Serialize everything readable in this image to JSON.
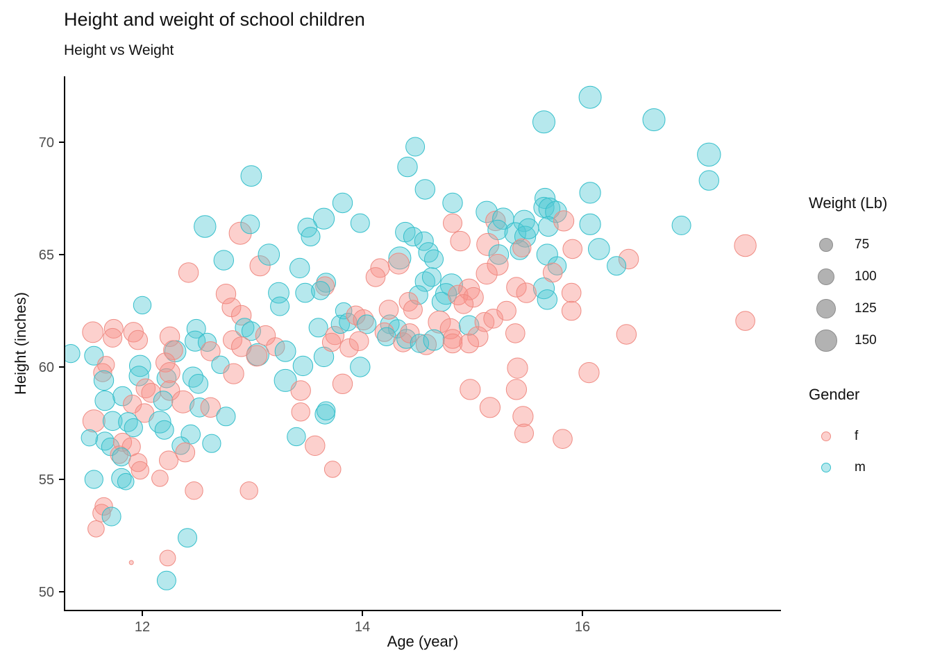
{
  "title": "Height and weight of school children",
  "subtitle": "Height vs Weight",
  "chart_data": {
    "type": "scatter",
    "title": "Height and weight of school children",
    "subtitle": "Height vs Weight",
    "xlabel": "Age (year)",
    "ylabel": "Height (inches)",
    "x_ticks": [
      12,
      14,
      16
    ],
    "y_ticks": [
      50,
      55,
      60,
      65,
      70
    ],
    "xlim": [
      11.3,
      17.8
    ],
    "ylim": [
      49.2,
      72.8
    ],
    "grid": false,
    "legend_position": "right",
    "size_legend": {
      "title": "Weight (Lb)",
      "values": [
        75,
        100,
        125,
        150
      ]
    },
    "color_legend": {
      "title": "Gender",
      "entries": [
        {
          "label": "f"
        },
        {
          "label": "m"
        }
      ]
    },
    "colors": {
      "f": {
        "stroke": "#EF8B83",
        "fill": "rgba(247,143,135,0.42)"
      },
      "m": {
        "stroke": "#35BFCB",
        "fill": "rgba(82,201,211,0.42)"
      },
      "axis": "#000000",
      "tick_label": "#4d4d4d",
      "legend_key_fill": "#B2B2B2",
      "legend_key_stroke": "#8C8C8C"
    },
    "points_format": [
      "age_years",
      "height_inches",
      "gender",
      "weight_lb"
    ],
    "points": [
      [
        11.35,
        60.6,
        "m",
        110
      ],
      [
        11.56,
        60.5,
        "m",
        115
      ],
      [
        11.67,
        60.1,
        "f",
        100
      ],
      [
        11.64,
        59.75,
        "f",
        110
      ],
      [
        11.65,
        59.4,
        "m",
        125
      ],
      [
        11.98,
        60.05,
        "m",
        140
      ],
      [
        11.97,
        59.6,
        "m",
        125
      ],
      [
        11.55,
        61.55,
        "f",
        135
      ],
      [
        11.74,
        61.7,
        "f",
        115
      ],
      [
        11.73,
        61.3,
        "f",
        115
      ],
      [
        11.92,
        61.55,
        "f",
        125
      ],
      [
        11.96,
        61.2,
        "f",
        120
      ],
      [
        12.25,
        61.35,
        "f",
        125
      ],
      [
        12.49,
        61.7,
        "m",
        115
      ],
      [
        12.48,
        61.15,
        "m",
        130
      ],
      [
        12.59,
        61.1,
        "m",
        110
      ],
      [
        12.3,
        60.7,
        "m",
        140
      ],
      [
        12.28,
        60.75,
        "f",
        120
      ],
      [
        12.62,
        60.7,
        "f",
        120
      ],
      [
        12.71,
        60.1,
        "m",
        105
      ],
      [
        12.83,
        59.7,
        "f",
        130
      ],
      [
        12.0,
        62.75,
        "m",
        105
      ],
      [
        12.46,
        59.55,
        "m",
        130
      ],
      [
        12.51,
        59.25,
        "m",
        120
      ],
      [
        12.22,
        59.5,
        "m",
        120
      ],
      [
        12.21,
        60.2,
        "f",
        120
      ],
      [
        12.25,
        59.75,
        "f",
        130
      ],
      [
        12.03,
        59.05,
        "f",
        120
      ],
      [
        12.08,
        58.85,
        "f",
        120
      ],
      [
        12.25,
        58.95,
        "f",
        125
      ],
      [
        12.19,
        58.5,
        "m",
        120
      ],
      [
        11.82,
        58.7,
        "m",
        120
      ],
      [
        11.66,
        58.5,
        "m",
        125
      ],
      [
        11.91,
        58.35,
        "f",
        110
      ],
      [
        12.02,
        57.95,
        "f",
        115
      ],
      [
        12.37,
        58.45,
        "f",
        150
      ],
      [
        12.52,
        58.2,
        "m",
        120
      ],
      [
        12.62,
        58.2,
        "f",
        125
      ],
      [
        12.76,
        57.8,
        "m",
        115
      ],
      [
        11.56,
        57.6,
        "f",
        150
      ],
      [
        11.73,
        57.6,
        "m",
        120
      ],
      [
        11.87,
        57.55,
        "m",
        120
      ],
      [
        11.92,
        57.3,
        "m",
        110
      ],
      [
        12.16,
        57.55,
        "m",
        145
      ],
      [
        12.2,
        57.2,
        "m",
        115
      ],
      [
        12.44,
        57.0,
        "m",
        120
      ],
      [
        11.52,
        56.85,
        "m",
        95
      ],
      [
        11.66,
        56.7,
        "m",
        110
      ],
      [
        11.71,
        56.45,
        "m",
        105
      ],
      [
        11.82,
        56.65,
        "f",
        110
      ],
      [
        11.9,
        56.45,
        "f",
        110
      ],
      [
        11.79,
        56.1,
        "f",
        105
      ],
      [
        11.81,
        56.0,
        "m",
        110
      ],
      [
        11.96,
        55.75,
        "f",
        110
      ],
      [
        11.98,
        55.4,
        "f",
        105
      ],
      [
        12.24,
        55.85,
        "f",
        115
      ],
      [
        12.35,
        56.5,
        "m",
        105
      ],
      [
        12.39,
        56.2,
        "f",
        120
      ],
      [
        12.63,
        56.6,
        "m",
        110
      ],
      [
        12.16,
        55.05,
        "f",
        95
      ],
      [
        11.56,
        55.0,
        "m",
        110
      ],
      [
        11.81,
        55.05,
        "m",
        125
      ],
      [
        11.85,
        54.9,
        "m",
        95
      ],
      [
        11.65,
        53.8,
        "f",
        105
      ],
      [
        11.63,
        53.5,
        "f",
        105
      ],
      [
        11.72,
        53.35,
        "m",
        115
      ],
      [
        11.58,
        52.8,
        "f",
        95
      ],
      [
        12.41,
        52.4,
        "m",
        115
      ],
      [
        12.23,
        51.5,
        "f",
        90
      ],
      [
        11.9,
        51.3,
        "f",
        20
      ],
      [
        12.22,
        50.5,
        "m",
        115
      ],
      [
        12.47,
        54.5,
        "f",
        105
      ],
      [
        12.97,
        54.5,
        "f",
        105
      ],
      [
        12.99,
        68.5,
        "m",
        135
      ],
      [
        12.57,
        66.25,
        "m",
        145
      ],
      [
        12.89,
        65.95,
        "f",
        150
      ],
      [
        12.98,
        66.35,
        "m",
        115
      ],
      [
        12.74,
        64.75,
        "m",
        125
      ],
      [
        12.42,
        64.2,
        "f",
        125
      ],
      [
        13.07,
        64.5,
        "f",
        130
      ],
      [
        13.15,
        65.0,
        "m",
        140
      ],
      [
        13.43,
        64.4,
        "m",
        125
      ],
      [
        13.24,
        63.3,
        "m",
        135
      ],
      [
        13.25,
        62.7,
        "m",
        115
      ],
      [
        12.76,
        63.25,
        "f",
        125
      ],
      [
        12.81,
        62.65,
        "f",
        115
      ],
      [
        12.9,
        62.3,
        "f",
        125
      ],
      [
        12.93,
        61.75,
        "m",
        115
      ],
      [
        12.99,
        61.6,
        "m",
        115
      ],
      [
        12.82,
        61.2,
        "f",
        115
      ],
      [
        12.9,
        60.9,
        "f",
        125
      ],
      [
        13.05,
        60.55,
        "m",
        150
      ],
      [
        13.04,
        60.5,
        "f",
        135
      ],
      [
        13.12,
        61.4,
        "f",
        125
      ],
      [
        13.21,
        60.9,
        "f",
        110
      ],
      [
        13.3,
        60.7,
        "m",
        135
      ],
      [
        13.46,
        60.05,
        "m",
        125
      ],
      [
        13.3,
        59.4,
        "m",
        150
      ],
      [
        13.44,
        58.95,
        "f",
        125
      ],
      [
        13.44,
        58.0,
        "f",
        112
      ],
      [
        13.4,
        56.9,
        "m",
        112
      ],
      [
        13.48,
        63.3,
        "m",
        120
      ],
      [
        13.6,
        61.75,
        "m",
        115
      ],
      [
        13.75,
        61.4,
        "f",
        112
      ],
      [
        13.8,
        61.9,
        "m",
        112
      ],
      [
        13.65,
        60.45,
        "m",
        125
      ],
      [
        13.98,
        60.0,
        "m",
        125
      ],
      [
        13.82,
        59.25,
        "f",
        125
      ],
      [
        13.66,
        57.9,
        "m",
        125
      ],
      [
        13.67,
        58.05,
        "m",
        112
      ],
      [
        13.57,
        56.5,
        "f",
        125
      ],
      [
        13.73,
        55.45,
        "f",
        95
      ],
      [
        13.82,
        67.3,
        "m",
        125
      ],
      [
        13.65,
        66.6,
        "m",
        137
      ],
      [
        13.98,
        66.4,
        "m",
        115
      ],
      [
        13.5,
        66.2,
        "m",
        120
      ],
      [
        13.53,
        65.8,
        "m",
        115
      ],
      [
        14.48,
        69.8,
        "m",
        115
      ],
      [
        14.41,
        68.9,
        "m",
        125
      ],
      [
        14.57,
        67.9,
        "m",
        125
      ],
      [
        14.82,
        67.3,
        "m",
        125
      ],
      [
        14.82,
        66.4,
        "f",
        115
      ],
      [
        14.39,
        66.0,
        "m",
        125
      ],
      [
        14.46,
        65.8,
        "m",
        115
      ],
      [
        14.56,
        65.6,
        "m",
        115
      ],
      [
        14.6,
        65.1,
        "m",
        125
      ],
      [
        14.65,
        64.8,
        "m",
        115
      ],
      [
        14.34,
        64.85,
        "m",
        150
      ],
      [
        14.33,
        64.6,
        "f",
        137
      ],
      [
        14.16,
        64.4,
        "f",
        115
      ],
      [
        14.12,
        64.0,
        "f",
        120
      ],
      [
        13.67,
        63.75,
        "m",
        120
      ],
      [
        13.66,
        63.6,
        "f",
        115
      ],
      [
        13.62,
        63.4,
        "m",
        112
      ],
      [
        14.57,
        63.8,
        "m",
        125
      ],
      [
        14.63,
        64.0,
        "m",
        115
      ],
      [
        14.81,
        63.65,
        "m",
        150
      ],
      [
        14.76,
        63.25,
        "m",
        137
      ],
      [
        14.72,
        62.9,
        "m",
        120
      ],
      [
        14.51,
        63.2,
        "m",
        115
      ],
      [
        14.87,
        63.2,
        "f",
        125
      ],
      [
        14.97,
        63.45,
        "f",
        137
      ],
      [
        15.01,
        63.1,
        "f",
        125
      ],
      [
        14.92,
        62.8,
        "f",
        120
      ],
      [
        14.25,
        61.9,
        "m",
        115
      ],
      [
        14.32,
        61.7,
        "m",
        112
      ],
      [
        14.24,
        62.55,
        "f",
        120
      ],
      [
        14.42,
        62.9,
        "f",
        115
      ],
      [
        14.46,
        62.55,
        "f",
        115
      ],
      [
        13.83,
        62.5,
        "m",
        95
      ],
      [
        13.87,
        62.0,
        "m",
        105
      ],
      [
        13.94,
        62.3,
        "f",
        115
      ],
      [
        14.01,
        62.1,
        "f",
        130
      ],
      [
        14.04,
        61.9,
        "m",
        115
      ],
      [
        14.2,
        61.55,
        "f",
        115
      ],
      [
        14.22,
        61.35,
        "m",
        112
      ],
      [
        14.7,
        62.0,
        "f",
        150
      ],
      [
        14.8,
        61.7,
        "f",
        130
      ],
      [
        14.82,
        61.25,
        "f",
        120
      ],
      [
        14.97,
        61.85,
        "m",
        125
      ],
      [
        15.05,
        61.35,
        "f",
        130
      ],
      [
        15.11,
        62.0,
        "f",
        120
      ],
      [
        15.19,
        62.15,
        "f",
        120
      ],
      [
        15.31,
        62.5,
        "f",
        120
      ],
      [
        13.72,
        61.1,
        "f",
        112
      ],
      [
        13.88,
        60.85,
        "f",
        112
      ],
      [
        13.97,
        61.15,
        "f",
        120
      ],
      [
        14.37,
        61.1,
        "f",
        120
      ],
      [
        14.4,
        61.25,
        "m",
        120
      ],
      [
        14.43,
        61.5,
        "f",
        120
      ],
      [
        14.58,
        61.0,
        "f",
        130
      ],
      [
        14.52,
        61.05,
        "m",
        112
      ],
      [
        14.65,
        61.2,
        "m",
        135
      ],
      [
        14.82,
        61.05,
        "f",
        120
      ],
      [
        14.97,
        61.05,
        "f",
        120
      ],
      [
        15.39,
        61.5,
        "f",
        120
      ],
      [
        14.98,
        59.0,
        "f",
        130
      ],
      [
        15.16,
        58.2,
        "f",
        130
      ],
      [
        15.41,
        59.95,
        "f",
        130
      ],
      [
        15.4,
        59.0,
        "f",
        130
      ],
      [
        15.46,
        57.8,
        "f",
        130
      ],
      [
        15.47,
        57.05,
        "f",
        115
      ],
      [
        15.82,
        56.8,
        "f",
        120
      ],
      [
        16.06,
        59.75,
        "f",
        130
      ],
      [
        15.13,
        66.9,
        "m",
        140
      ],
      [
        15.21,
        66.5,
        "f",
        125
      ],
      [
        15.28,
        66.6,
        "m",
        140
      ],
      [
        15.47,
        66.5,
        "m",
        140
      ],
      [
        15.23,
        66.1,
        "m",
        125
      ],
      [
        15.39,
        65.95,
        "m",
        140
      ],
      [
        15.48,
        65.8,
        "m",
        137
      ],
      [
        15.51,
        66.15,
        "m",
        130
      ],
      [
        14.89,
        65.6,
        "f",
        125
      ],
      [
        15.14,
        65.45,
        "f",
        150
      ],
      [
        15.43,
        65.2,
        "m",
        120
      ],
      [
        15.45,
        65.3,
        "f",
        110
      ],
      [
        15.24,
        65.0,
        "m",
        125
      ],
      [
        15.23,
        64.55,
        "f",
        137
      ],
      [
        15.13,
        64.15,
        "f",
        137
      ],
      [
        15.68,
        65.0,
        "m",
        137
      ],
      [
        15.77,
        64.5,
        "m",
        112
      ],
      [
        15.65,
        63.5,
        "m",
        137
      ],
      [
        15.68,
        63.0,
        "m",
        125
      ],
      [
        15.4,
        63.55,
        "f",
        125
      ],
      [
        15.49,
        63.3,
        "f",
        125
      ],
      [
        15.9,
        63.3,
        "f",
        120
      ],
      [
        15.9,
        62.5,
        "f",
        120
      ],
      [
        15.65,
        70.9,
        "m",
        150
      ],
      [
        15.66,
        67.5,
        "m",
        130
      ],
      [
        15.65,
        67.1,
        "m",
        130
      ],
      [
        15.7,
        67.05,
        "m",
        140
      ],
      [
        15.76,
        66.9,
        "m",
        140
      ],
      [
        15.69,
        66.25,
        "m",
        125
      ],
      [
        15.83,
        66.5,
        "f",
        130
      ],
      [
        15.73,
        64.2,
        "f",
        120
      ],
      [
        16.07,
        72.0,
        "m",
        150
      ],
      [
        16.65,
        71.0,
        "m",
        150
      ],
      [
        16.07,
        67.75,
        "m",
        137
      ],
      [
        16.07,
        66.35,
        "m",
        137
      ],
      [
        16.15,
        65.25,
        "m",
        140
      ],
      [
        15.91,
        65.25,
        "f",
        120
      ],
      [
        16.42,
        64.8,
        "f",
        125
      ],
      [
        16.31,
        64.5,
        "m",
        115
      ],
      [
        16.9,
        66.3,
        "m",
        115
      ],
      [
        17.15,
        69.45,
        "m",
        160
      ],
      [
        17.15,
        68.3,
        "m",
        125
      ],
      [
        17.48,
        65.4,
        "f",
        145
      ],
      [
        17.48,
        62.05,
        "f",
        120
      ],
      [
        16.4,
        61.45,
        "f",
        125
      ]
    ]
  }
}
